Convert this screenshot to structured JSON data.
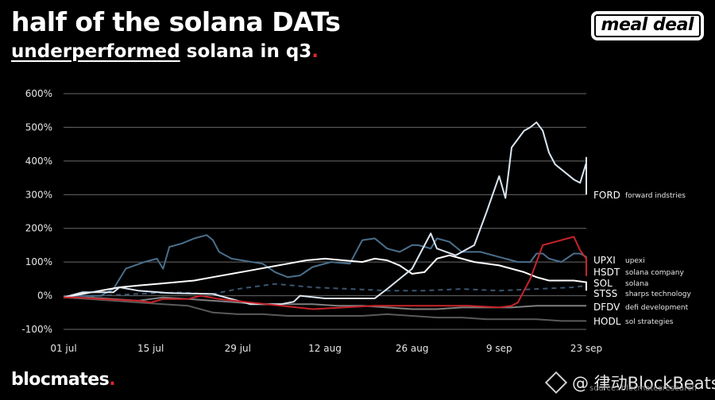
{
  "header": {
    "title": "half of the solana DATs",
    "subtitle_underlined": "underperformed",
    "subtitle_rest": " solana in q3",
    "period": "."
  },
  "badge": {
    "label": "meal deal"
  },
  "footer": {
    "brand": "blocmates",
    "brand_dot": ".",
    "watermark": "@ 律动BlockBeats",
    "source": "source: blocmatesresearch"
  },
  "chart_data": {
    "type": "line",
    "x_tick_labels": [
      "01 jul",
      "15 jul",
      "29 jul",
      "12 aug",
      "26 aug",
      "9 sep",
      "23 sep"
    ],
    "x_tick_days": [
      0,
      14,
      28,
      42,
      56,
      70,
      84
    ],
    "x_range_days": [
      0,
      84
    ],
    "y_ticks": [
      -100,
      0,
      100,
      200,
      300,
      400,
      500,
      600
    ],
    "y_tick_labels": [
      "-100%",
      "0%",
      "100%",
      "200%",
      "300%",
      "400%",
      "500%",
      "600%"
    ],
    "ylim": [
      -100,
      600
    ],
    "grid": "horizontal",
    "colors": {
      "grid": "#6a6a6a",
      "axis_text": "#e6e6e6",
      "FORD": "#dce6f2",
      "UPXI": "#4a6f8c",
      "HSDT": "#c8232b",
      "SOL": "#ffffff",
      "STSS": "#3a5670",
      "DFDV": "#7f7f7f",
      "HODL": "#5a5a5a"
    },
    "series": [
      {
        "ticker": "FORD",
        "name": "forward indstries",
        "dashed": false,
        "points": [
          [
            0,
            -5
          ],
          [
            3,
            10
          ],
          [
            8,
            10
          ],
          [
            9,
            25
          ],
          [
            12,
            15
          ],
          [
            17,
            8
          ],
          [
            24,
            5
          ],
          [
            30,
            -25
          ],
          [
            35,
            -25
          ],
          [
            37,
            -18
          ],
          [
            38,
            0
          ],
          [
            42,
            -8
          ],
          [
            50,
            -8
          ],
          [
            52,
            20
          ],
          [
            56,
            80
          ],
          [
            59,
            185
          ],
          [
            60,
            140
          ],
          [
            63,
            120
          ],
          [
            66,
            150
          ],
          [
            68,
            250
          ],
          [
            70,
            355
          ],
          [
            71,
            290
          ],
          [
            72,
            440
          ],
          [
            74,
            490
          ],
          [
            75,
            500
          ],
          [
            76,
            515
          ],
          [
            77,
            490
          ],
          [
            78,
            425
          ],
          [
            79,
            390
          ],
          [
            81,
            360
          ],
          [
            82,
            345
          ],
          [
            83,
            335
          ],
          [
            84,
            395
          ],
          [
            85,
            410
          ],
          [
            86,
            350
          ],
          [
            87,
            360
          ],
          [
            88,
            345
          ],
          [
            89,
            330
          ],
          [
            90,
            320
          ],
          [
            91,
            310
          ],
          [
            92,
            300
          ]
        ]
      },
      {
        "ticker": "UPXI",
        "name": "upexi",
        "dashed": false,
        "points": [
          [
            0,
            -5
          ],
          [
            2,
            0
          ],
          [
            6,
            0
          ],
          [
            8,
            20
          ],
          [
            10,
            80
          ],
          [
            13,
            100
          ],
          [
            15,
            110
          ],
          [
            16,
            80
          ],
          [
            17,
            145
          ],
          [
            19,
            155
          ],
          [
            21,
            170
          ],
          [
            23,
            180
          ],
          [
            24,
            165
          ],
          [
            25,
            130
          ],
          [
            27,
            110
          ],
          [
            32,
            95
          ],
          [
            34,
            70
          ],
          [
            36,
            55
          ],
          [
            38,
            60
          ],
          [
            40,
            85
          ],
          [
            43,
            100
          ],
          [
            46,
            95
          ],
          [
            48,
            165
          ],
          [
            50,
            170
          ],
          [
            52,
            140
          ],
          [
            54,
            130
          ],
          [
            56,
            150
          ],
          [
            57,
            150
          ],
          [
            59,
            140
          ],
          [
            60,
            170
          ],
          [
            62,
            160
          ],
          [
            64,
            130
          ],
          [
            67,
            130
          ],
          [
            70,
            115
          ],
          [
            73,
            100
          ],
          [
            75,
            100
          ],
          [
            76,
            125
          ],
          [
            77,
            125
          ],
          [
            78,
            110
          ],
          [
            80,
            100
          ],
          [
            82,
            125
          ],
          [
            83,
            125
          ],
          [
            84,
            115
          ],
          [
            86,
            105
          ],
          [
            88,
            95
          ],
          [
            90,
            80
          ],
          [
            92,
            100
          ]
        ]
      },
      {
        "ticker": "HSDT",
        "name": "solana company",
        "dashed": false,
        "points": [
          [
            0,
            -5
          ],
          [
            2,
            -5
          ],
          [
            6,
            -10
          ],
          [
            12,
            -15
          ],
          [
            14,
            -20
          ],
          [
            16,
            -10
          ],
          [
            20,
            -10
          ],
          [
            22,
            0
          ],
          [
            25,
            -10
          ],
          [
            30,
            -20
          ],
          [
            35,
            -30
          ],
          [
            40,
            -40
          ],
          [
            45,
            -35
          ],
          [
            50,
            -30
          ],
          [
            56,
            -30
          ],
          [
            60,
            -30
          ],
          [
            65,
            -30
          ],
          [
            70,
            -35
          ],
          [
            72,
            -30
          ],
          [
            73,
            -20
          ],
          [
            75,
            50
          ],
          [
            77,
            150
          ],
          [
            79,
            160
          ],
          [
            81,
            170
          ],
          [
            82,
            175
          ],
          [
            83,
            135
          ],
          [
            84,
            110
          ],
          [
            85,
            90
          ],
          [
            87,
            80
          ],
          [
            88,
            70
          ],
          [
            89,
            60
          ],
          [
            90,
            60
          ],
          [
            91,
            65
          ],
          [
            92,
            70
          ]
        ]
      },
      {
        "ticker": "SOL",
        "name": "solana",
        "dashed": false,
        "points": [
          [
            0,
            -5
          ],
          [
            3,
            5
          ],
          [
            6,
            15
          ],
          [
            9,
            25
          ],
          [
            12,
            30
          ],
          [
            15,
            35
          ],
          [
            18,
            40
          ],
          [
            21,
            45
          ],
          [
            24,
            55
          ],
          [
            27,
            65
          ],
          [
            30,
            75
          ],
          [
            33,
            85
          ],
          [
            36,
            95
          ],
          [
            39,
            105
          ],
          [
            42,
            110
          ],
          [
            45,
            105
          ],
          [
            48,
            100
          ],
          [
            50,
            110
          ],
          [
            52,
            105
          ],
          [
            54,
            90
          ],
          [
            56,
            65
          ],
          [
            58,
            70
          ],
          [
            60,
            110
          ],
          [
            62,
            120
          ],
          [
            64,
            110
          ],
          [
            66,
            100
          ],
          [
            68,
            95
          ],
          [
            70,
            90
          ],
          [
            72,
            80
          ],
          [
            74,
            70
          ],
          [
            76,
            55
          ],
          [
            78,
            45
          ],
          [
            82,
            45
          ],
          [
            84,
            40
          ],
          [
            86,
            30
          ],
          [
            88,
            20
          ],
          [
            90,
            20
          ],
          [
            92,
            15
          ]
        ]
      },
      {
        "ticker": "STSS",
        "name": "sharps technology",
        "dashed": true,
        "points": [
          [
            0,
            -5
          ],
          [
            6,
            0
          ],
          [
            12,
            5
          ],
          [
            18,
            10
          ],
          [
            24,
            5
          ],
          [
            28,
            20
          ],
          [
            34,
            35
          ],
          [
            40,
            25
          ],
          [
            46,
            20
          ],
          [
            52,
            15
          ],
          [
            58,
            15
          ],
          [
            64,
            20
          ],
          [
            70,
            15
          ],
          [
            76,
            20
          ],
          [
            82,
            25
          ],
          [
            88,
            30
          ],
          [
            92,
            25
          ]
        ]
      },
      {
        "ticker": "DFDV",
        "name": "defi development",
        "dashed": false,
        "points": [
          [
            0,
            -5
          ],
          [
            4,
            -5
          ],
          [
            8,
            -10
          ],
          [
            12,
            -15
          ],
          [
            16,
            -5
          ],
          [
            20,
            -10
          ],
          [
            24,
            -15
          ],
          [
            28,
            -20
          ],
          [
            32,
            -25
          ],
          [
            36,
            -25
          ],
          [
            40,
            -25
          ],
          [
            44,
            -30
          ],
          [
            48,
            -30
          ],
          [
            52,
            -35
          ],
          [
            56,
            -40
          ],
          [
            60,
            -40
          ],
          [
            64,
            -35
          ],
          [
            68,
            -35
          ],
          [
            72,
            -35
          ],
          [
            76,
            -30
          ],
          [
            80,
            -30
          ],
          [
            84,
            -30
          ],
          [
            88,
            -30
          ],
          [
            92,
            -30
          ]
        ]
      },
      {
        "ticker": "HODL",
        "name": "sol strategies",
        "dashed": false,
        "points": [
          [
            0,
            -5
          ],
          [
            4,
            -10
          ],
          [
            8,
            -15
          ],
          [
            12,
            -20
          ],
          [
            16,
            -25
          ],
          [
            20,
            -30
          ],
          [
            24,
            -50
          ],
          [
            28,
            -55
          ],
          [
            32,
            -55
          ],
          [
            36,
            -60
          ],
          [
            40,
            -60
          ],
          [
            44,
            -60
          ],
          [
            48,
            -60
          ],
          [
            52,
            -55
          ],
          [
            56,
            -60
          ],
          [
            60,
            -65
          ],
          [
            64,
            -65
          ],
          [
            68,
            -70
          ],
          [
            72,
            -70
          ],
          [
            76,
            -70
          ],
          [
            80,
            -75
          ],
          [
            84,
            -75
          ],
          [
            88,
            -75
          ],
          [
            92,
            -75
          ]
        ]
      }
    ]
  }
}
